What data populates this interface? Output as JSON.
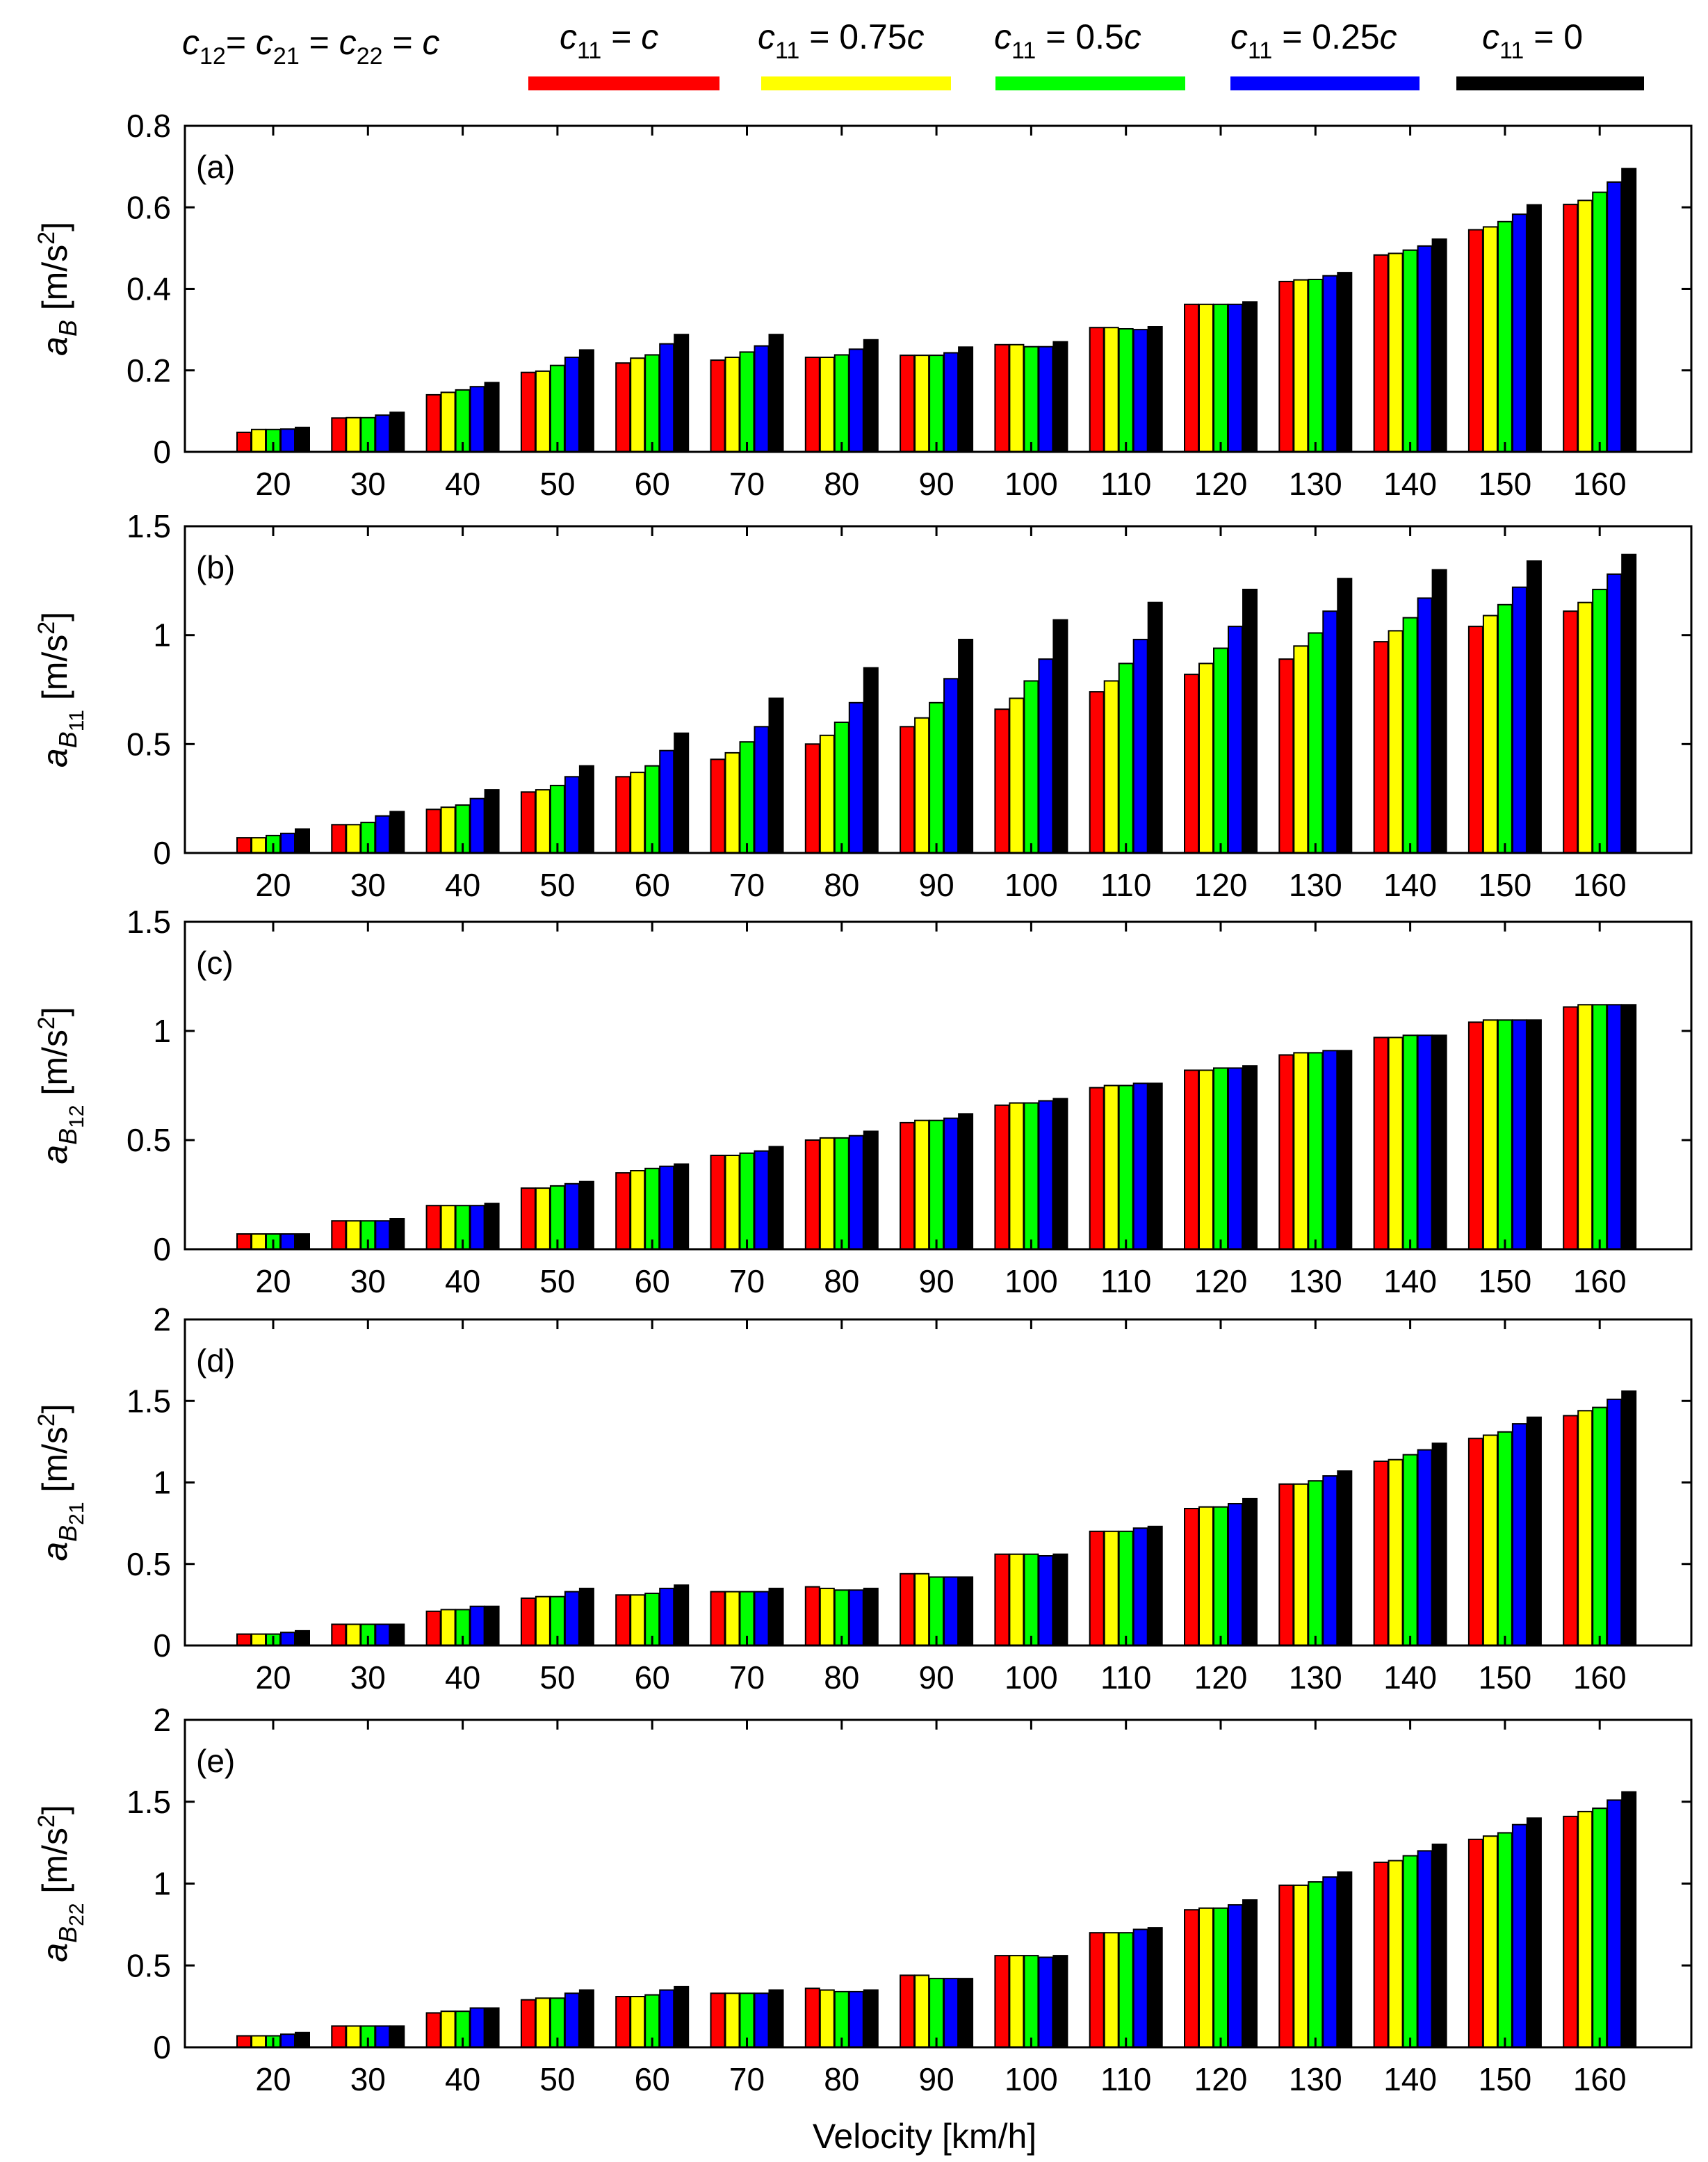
{
  "figure": {
    "title_parts": {
      "c12": "c",
      "c12_sub": "12",
      "c21_pre": "= ",
      "c21": "c",
      "c21_sub": "21",
      "c22_pre": " = ",
      "c22": "c",
      "c22_sub": "22",
      "tail_pre": " = ",
      "tail": "c"
    },
    "xlabel": "Velocity [km/h]",
    "legend": [
      {
        "var": "c",
        "sub": "11",
        "rest": " = ",
        "coef": "c",
        "color": "#ff0000"
      },
      {
        "var": "c",
        "sub": "11",
        "rest": " = 0.75",
        "coef": "c",
        "color": "#ffff00"
      },
      {
        "var": "c",
        "sub": "11",
        "rest": " = 0.5",
        "coef": "c",
        "color": "#00ff00"
      },
      {
        "var": "c",
        "sub": "11",
        "rest": " = 0.25",
        "coef": "c",
        "color": "#0000ff"
      },
      {
        "var": "c",
        "sub": "11",
        "rest": " = 0",
        "coef": "",
        "color": "#000000"
      }
    ]
  },
  "chart_data": [
    {
      "type": "bar",
      "panel": "(a)",
      "ylabel": {
        "main": "a",
        "sub": "B",
        "subsub": "",
        "unit": "[m/s",
        "exp": "2",
        "close": "]"
      },
      "ylim": [
        0,
        0.8
      ],
      "yticks": [
        "0",
        "0.2",
        "0.4",
        "0.6",
        "0.8"
      ],
      "categories": [
        "20",
        "30",
        "40",
        "50",
        "60",
        "70",
        "80",
        "90",
        "100",
        "110",
        "120",
        "130",
        "140",
        "150",
        "160"
      ],
      "series": [
        {
          "name": "c11 = c",
          "values": [
            0.048,
            0.083,
            0.14,
            0.195,
            0.218,
            0.225,
            0.232,
            0.237,
            0.263,
            0.305,
            0.362,
            0.418,
            0.483,
            0.545,
            0.607
          ]
        },
        {
          "name": "c11 = 0.75c",
          "values": [
            0.055,
            0.084,
            0.146,
            0.198,
            0.23,
            0.232,
            0.232,
            0.237,
            0.263,
            0.305,
            0.362,
            0.422,
            0.487,
            0.552,
            0.617
          ]
        },
        {
          "name": "c11 = 0.5c",
          "values": [
            0.055,
            0.084,
            0.152,
            0.212,
            0.238,
            0.245,
            0.238,
            0.237,
            0.258,
            0.302,
            0.362,
            0.423,
            0.495,
            0.565,
            0.637
          ]
        },
        {
          "name": "c11 = 0.25c",
          "values": [
            0.056,
            0.09,
            0.16,
            0.232,
            0.265,
            0.26,
            0.252,
            0.243,
            0.258,
            0.3,
            0.362,
            0.432,
            0.505,
            0.583,
            0.662
          ]
        },
        {
          "name": "c11 = 0",
          "values": [
            0.06,
            0.097,
            0.17,
            0.25,
            0.288,
            0.288,
            0.275,
            0.257,
            0.27,
            0.307,
            0.368,
            0.44,
            0.522,
            0.606,
            0.695
          ]
        }
      ]
    },
    {
      "type": "bar",
      "panel": "(b)",
      "ylabel": {
        "main": "a",
        "sub": "B",
        "subsub": "11",
        "unit": "[m/s",
        "exp": "2",
        "close": "]"
      },
      "ylim": [
        0,
        1.5
      ],
      "yticks": [
        "0",
        "0.5",
        "1",
        "1.5"
      ],
      "categories": [
        "20",
        "30",
        "40",
        "50",
        "60",
        "70",
        "80",
        "90",
        "100",
        "110",
        "120",
        "130",
        "140",
        "150",
        "160"
      ],
      "series": [
        {
          "name": "c11 = c",
          "values": [
            0.07,
            0.13,
            0.2,
            0.28,
            0.35,
            0.43,
            0.5,
            0.58,
            0.66,
            0.74,
            0.82,
            0.89,
            0.97,
            1.04,
            1.11
          ]
        },
        {
          "name": "c11 = 0.75c",
          "values": [
            0.07,
            0.13,
            0.21,
            0.29,
            0.37,
            0.46,
            0.54,
            0.62,
            0.71,
            0.79,
            0.87,
            0.95,
            1.02,
            1.09,
            1.15
          ]
        },
        {
          "name": "c11 = 0.5c",
          "values": [
            0.08,
            0.14,
            0.22,
            0.31,
            0.4,
            0.51,
            0.6,
            0.69,
            0.79,
            0.87,
            0.94,
            1.01,
            1.08,
            1.14,
            1.21
          ]
        },
        {
          "name": "c11 = 0.25c",
          "values": [
            0.09,
            0.17,
            0.25,
            0.35,
            0.47,
            0.58,
            0.69,
            0.8,
            0.89,
            0.98,
            1.04,
            1.11,
            1.17,
            1.22,
            1.28
          ]
        },
        {
          "name": "c11 = 0",
          "values": [
            0.11,
            0.19,
            0.29,
            0.4,
            0.55,
            0.71,
            0.85,
            0.98,
            1.07,
            1.15,
            1.21,
            1.26,
            1.3,
            1.34,
            1.37
          ]
        }
      ]
    },
    {
      "type": "bar",
      "panel": "(c)",
      "ylabel": {
        "main": "a",
        "sub": "B",
        "subsub": "12",
        "unit": "[m/s",
        "exp": "2",
        "close": "]"
      },
      "ylim": [
        0,
        1.5
      ],
      "yticks": [
        "0",
        "0.5",
        "1",
        "1.5"
      ],
      "categories": [
        "20",
        "30",
        "40",
        "50",
        "60",
        "70",
        "80",
        "90",
        "100",
        "110",
        "120",
        "130",
        "140",
        "150",
        "160"
      ],
      "series": [
        {
          "name": "c11 = c",
          "values": [
            0.07,
            0.13,
            0.2,
            0.28,
            0.35,
            0.43,
            0.5,
            0.58,
            0.66,
            0.74,
            0.82,
            0.89,
            0.97,
            1.04,
            1.11
          ]
        },
        {
          "name": "c11 = 0.75c",
          "values": [
            0.07,
            0.13,
            0.2,
            0.28,
            0.36,
            0.43,
            0.51,
            0.59,
            0.67,
            0.75,
            0.82,
            0.9,
            0.97,
            1.05,
            1.12
          ]
        },
        {
          "name": "c11 = 0.5c",
          "values": [
            0.07,
            0.13,
            0.2,
            0.29,
            0.37,
            0.44,
            0.51,
            0.59,
            0.67,
            0.75,
            0.83,
            0.9,
            0.98,
            1.05,
            1.12
          ]
        },
        {
          "name": "c11 = 0.25c",
          "values": [
            0.07,
            0.13,
            0.2,
            0.3,
            0.38,
            0.45,
            0.52,
            0.6,
            0.68,
            0.76,
            0.83,
            0.91,
            0.98,
            1.05,
            1.12
          ]
        },
        {
          "name": "c11 = 0",
          "values": [
            0.07,
            0.14,
            0.21,
            0.31,
            0.39,
            0.47,
            0.54,
            0.62,
            0.69,
            0.76,
            0.84,
            0.91,
            0.98,
            1.05,
            1.12
          ]
        }
      ]
    },
    {
      "type": "bar",
      "panel": "(d)",
      "ylabel": {
        "main": "a",
        "sub": "B",
        "subsub": "21",
        "unit": "[m/s",
        "exp": "2",
        "close": "]"
      },
      "ylim": [
        0,
        2
      ],
      "yticks": [
        "0",
        "0.5",
        "1",
        "1.5",
        "2"
      ],
      "categories": [
        "20",
        "30",
        "40",
        "50",
        "60",
        "70",
        "80",
        "90",
        "100",
        "110",
        "120",
        "130",
        "140",
        "150",
        "160"
      ],
      "series": [
        {
          "name": "c11 = c",
          "values": [
            0.07,
            0.13,
            0.21,
            0.29,
            0.31,
            0.33,
            0.36,
            0.44,
            0.56,
            0.7,
            0.84,
            0.99,
            1.13,
            1.27,
            1.41
          ]
        },
        {
          "name": "c11 = 0.75c",
          "values": [
            0.07,
            0.13,
            0.22,
            0.3,
            0.31,
            0.33,
            0.35,
            0.44,
            0.56,
            0.7,
            0.85,
            0.99,
            1.14,
            1.29,
            1.44
          ]
        },
        {
          "name": "c11 = 0.5c",
          "values": [
            0.07,
            0.13,
            0.22,
            0.3,
            0.32,
            0.33,
            0.34,
            0.42,
            0.56,
            0.7,
            0.85,
            1.01,
            1.17,
            1.31,
            1.46
          ]
        },
        {
          "name": "c11 = 0.25c",
          "values": [
            0.08,
            0.13,
            0.24,
            0.33,
            0.35,
            0.33,
            0.34,
            0.42,
            0.55,
            0.72,
            0.87,
            1.04,
            1.2,
            1.36,
            1.51
          ]
        },
        {
          "name": "c11 = 0",
          "values": [
            0.09,
            0.13,
            0.24,
            0.35,
            0.37,
            0.35,
            0.35,
            0.42,
            0.56,
            0.73,
            0.9,
            1.07,
            1.24,
            1.4,
            1.56
          ]
        }
      ]
    },
    {
      "type": "bar",
      "panel": "(e)",
      "ylabel": {
        "main": "a",
        "sub": "B",
        "subsub": "22",
        "unit": "[m/s",
        "exp": "2",
        "close": "]"
      },
      "ylim": [
        0,
        2
      ],
      "yticks": [
        "0",
        "0.5",
        "1",
        "1.5",
        "2"
      ],
      "categories": [
        "20",
        "30",
        "40",
        "50",
        "60",
        "70",
        "80",
        "90",
        "100",
        "110",
        "120",
        "130",
        "140",
        "150",
        "160"
      ],
      "series": [
        {
          "name": "c11 = c",
          "values": [
            0.07,
            0.13,
            0.21,
            0.29,
            0.31,
            0.33,
            0.36,
            0.44,
            0.56,
            0.7,
            0.84,
            0.99,
            1.13,
            1.27,
            1.41
          ]
        },
        {
          "name": "c11 = 0.75c",
          "values": [
            0.07,
            0.13,
            0.22,
            0.3,
            0.31,
            0.33,
            0.35,
            0.44,
            0.56,
            0.7,
            0.85,
            0.99,
            1.14,
            1.29,
            1.44
          ]
        },
        {
          "name": "c11 = 0.5c",
          "values": [
            0.07,
            0.13,
            0.22,
            0.3,
            0.32,
            0.33,
            0.34,
            0.42,
            0.56,
            0.7,
            0.85,
            1.01,
            1.17,
            1.31,
            1.46
          ]
        },
        {
          "name": "c11 = 0.25c",
          "values": [
            0.08,
            0.13,
            0.24,
            0.33,
            0.35,
            0.33,
            0.34,
            0.42,
            0.55,
            0.72,
            0.87,
            1.04,
            1.2,
            1.36,
            1.51
          ]
        },
        {
          "name": "c11 = 0",
          "values": [
            0.09,
            0.13,
            0.24,
            0.35,
            0.37,
            0.35,
            0.35,
            0.42,
            0.56,
            0.73,
            0.9,
            1.07,
            1.24,
            1.4,
            1.56
          ]
        }
      ]
    }
  ]
}
